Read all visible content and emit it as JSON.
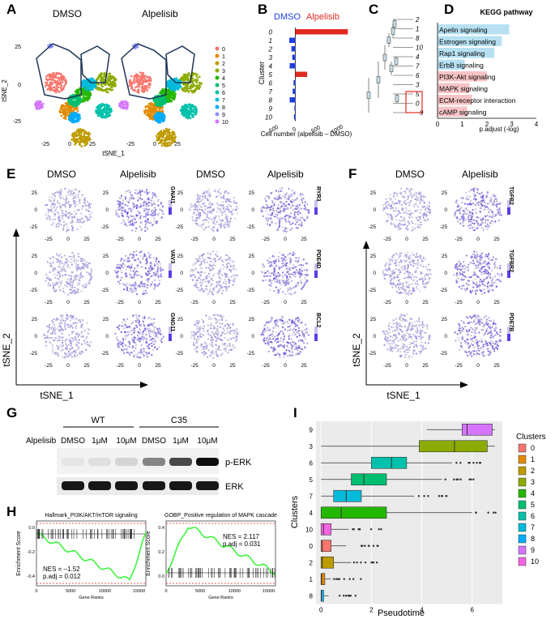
{
  "panels": {
    "A": "A",
    "B": "B",
    "C": "C",
    "D": "D",
    "E": "E",
    "F": "F",
    "G": "G",
    "H": "H",
    "I": "I"
  },
  "panelA": {
    "titles": [
      "DMSO",
      "Alpelisib"
    ],
    "ylabel": "tSNE_2",
    "xlabel": "tSNE_1",
    "xticks": [
      "-25",
      "0",
      "25"
    ],
    "yticks": [
      "25",
      "0",
      "-25"
    ],
    "legend": [
      "0",
      "1",
      "2",
      "3",
      "4",
      "5",
      "6",
      "7",
      "8",
      "9",
      "10"
    ],
    "colors": [
      "#f8766d",
      "#e18a00",
      "#be9c00",
      "#8cab00",
      "#24b700",
      "#00be70",
      "#00c1ab",
      "#00bbda",
      "#00acfc",
      "#8b93ff",
      "#d575fe"
    ]
  },
  "chart_data": [
    {
      "type": "bar",
      "title": "",
      "legend": [
        "DMSO",
        "Alpelisib"
      ],
      "xlabel": "Cell number (alpelisib – DMSO)",
      "ylabel": "Cluster",
      "categories": [
        "0",
        "1",
        "2",
        "3",
        "4",
        "5",
        "6",
        "7",
        "8",
        "9",
        "10"
      ],
      "values": [
        1230,
        -140,
        -90,
        -70,
        -130,
        280,
        -40,
        -60,
        -130,
        -20,
        -30
      ],
      "xlim": [
        -500,
        1300
      ],
      "xticks": [
        "-500",
        "0",
        "500",
        "1000"
      ]
    },
    {
      "type": "bar",
      "title": "KEGG pathway",
      "xlabel": "p.adjust (-log)",
      "xticks": [
        "0",
        "1",
        "2",
        "3",
        "4"
      ],
      "xlim": [
        0,
        4
      ],
      "categories": [
        "Apelin signaling",
        "Estrogen signaling",
        "Rap1 signaling",
        "ErbB signaling",
        "PI3K-Akt signaling",
        "MAPK signaling",
        "ECM-receptor interaction",
        "cAMP signaling"
      ],
      "values": [
        2.9,
        2.6,
        2.3,
        1.1,
        2.0,
        1.3,
        1.4,
        1.2
      ],
      "colors": [
        "#b7e1f3",
        "#b7e1f3",
        "#b7e1f3",
        "#b7e1f3",
        "#f7c4c6",
        "#f7c4c6",
        "#f7c4c6",
        "#f7c4c6"
      ]
    },
    {
      "type": "box",
      "xlabel": "Pseudotime",
      "ylabel": "Clusters",
      "xticks": [
        "0",
        "2",
        "4",
        "6"
      ],
      "xlim": [
        -0.2,
        7.2
      ],
      "categories": [
        "9",
        "3",
        "6",
        "5",
        "7",
        "4",
        "10",
        "0",
        "2",
        "1",
        "8"
      ],
      "q1": [
        5.6,
        3.9,
        2.0,
        1.2,
        0.5,
        0.0,
        0.0,
        0.0,
        0.0,
        0.0,
        0.0
      ],
      "median": [
        5.8,
        5.3,
        2.8,
        1.7,
        1.0,
        0.8,
        0.1,
        0.05,
        0.05,
        0.02,
        0.01
      ],
      "q3": [
        6.8,
        6.6,
        3.4,
        2.6,
        1.6,
        2.6,
        0.4,
        0.4,
        0.5,
        0.15,
        0.1
      ],
      "whisker_low": [
        4.2,
        0.0,
        0.0,
        0.0,
        0.0,
        0.0,
        0.0,
        0.0,
        0.0,
        0.0,
        0.0
      ],
      "whisker_high": [
        6.9,
        6.9,
        5.2,
        4.8,
        3.7,
        6.0,
        1.1,
        1.0,
        1.2,
        0.4,
        0.3
      ],
      "legend_title": "Clusters",
      "legend": [
        "0",
        "1",
        "2",
        "3",
        "4",
        "5",
        "6",
        "7",
        "8",
        "9",
        "10"
      ]
    }
  ],
  "panelC": {
    "leaves": [
      "2",
      "1",
      "8",
      "10",
      "4",
      "7",
      "6",
      "3",
      "5",
      "0",
      "9"
    ]
  },
  "panelE": {
    "titles": [
      "DMSO",
      "Alpelisib",
      "DMSO",
      "Alpelisib"
    ],
    "genes": [
      "GNAI1",
      "RYR3",
      "VAV3",
      "PDE4D",
      "GNG11",
      "BCL2"
    ],
    "ylabel": "tSNE_2",
    "xlabel": "tSNE_1",
    "xticks": [
      "-25",
      "0",
      "25"
    ],
    "yticks": [
      "25",
      "0",
      "-25"
    ]
  },
  "panelF": {
    "titles": [
      "DMSO",
      "Alpelisib"
    ],
    "genes": [
      "TGFB2",
      "TGFBR2",
      "PDE7B"
    ],
    "ylabel": "tSNE_2",
    "xlabel": "tSNE_1"
  },
  "panelG": {
    "groups": [
      "WT",
      "C35"
    ],
    "row_label": "Alpelisib",
    "lanes": [
      "DMSO",
      "1μM",
      "10μM",
      "DMSO",
      "1μM",
      "10μM"
    ],
    "blots": [
      "p-ERK",
      "ERK"
    ]
  },
  "panelH": {
    "left": {
      "title": "Hallmark_PI3K/AKT/mTOR signaling",
      "nes": "NES = –1.52",
      "padj": "p.adj = 0.012",
      "ylabel": "Enrichment Score",
      "xlabel": "Gene Ranks",
      "yticks": [
        "0.0",
        "-0.2",
        "-0.4"
      ],
      "xticks": [
        "0",
        "5000",
        "10000",
        "15000"
      ]
    },
    "right": {
      "title": "GOBP_Positive regulation of MAPK cascade",
      "nes": "NES = 2.117",
      "padj": "p.adj = 0.031",
      "ylabel": "Enrichment Score",
      "xlabel": "Gene Ranks",
      "yticks": [
        "0.4",
        "0.2",
        "0.0"
      ],
      "xticks": [
        "0",
        "5000",
        "10000",
        "15000"
      ]
    }
  }
}
